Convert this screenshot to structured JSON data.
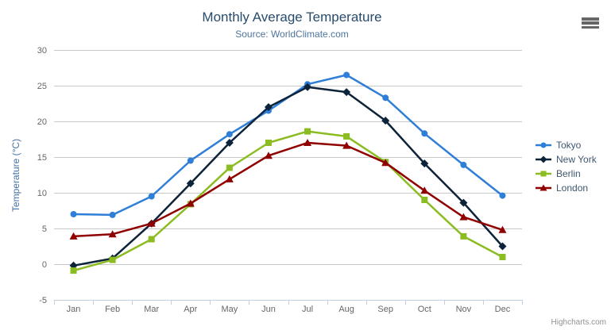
{
  "chart": {
    "title": "Monthly Average Temperature",
    "subtitle": "Source: WorldClimate.com",
    "credits": "Highcharts.com",
    "export_menu_icon": "hamburger-icon"
  },
  "chart_data": {
    "type": "line",
    "title": "Monthly Average Temperature",
    "subtitle": "Source: WorldClimate.com",
    "categories": [
      "Jan",
      "Feb",
      "Mar",
      "Apr",
      "May",
      "Jun",
      "Jul",
      "Aug",
      "Sep",
      "Oct",
      "Nov",
      "Dec"
    ],
    "xlabel": "",
    "ylabel": "Temperature (°C)",
    "ylim": [
      -5,
      30
    ],
    "ytick_interval": 5,
    "grid": true,
    "legend_position": "right",
    "series": [
      {
        "name": "Tokyo",
        "color": "#2f7ed8",
        "marker": "circle",
        "values": [
          7.0,
          6.9,
          9.5,
          14.5,
          18.2,
          21.5,
          25.2,
          26.5,
          23.3,
          18.3,
          13.9,
          9.6
        ]
      },
      {
        "name": "New York",
        "color": "#0d233a",
        "marker": "diamond",
        "values": [
          -0.2,
          0.8,
          5.7,
          11.3,
          17.0,
          22.0,
          24.8,
          24.1,
          20.1,
          14.1,
          8.6,
          2.5
        ]
      },
      {
        "name": "Berlin",
        "color": "#8bbc21",
        "marker": "square",
        "values": [
          -0.9,
          0.6,
          3.5,
          8.4,
          13.5,
          17.0,
          18.6,
          17.9,
          14.3,
          9.0,
          3.9,
          1.0
        ]
      },
      {
        "name": "London",
        "color": "#910000",
        "marker": "triangle",
        "values": [
          3.9,
          4.2,
          5.7,
          8.5,
          11.9,
          15.2,
          17.0,
          16.6,
          14.2,
          10.3,
          6.6,
          4.8
        ]
      }
    ]
  },
  "colors": {
    "grid_line": "#c8c8c8",
    "axis_line": "#c0d0e0",
    "tick_label": "#666666",
    "title_text": "#274b6d",
    "subtitle_text": "#4d759e",
    "yaxis_title_text": "#4572a7",
    "legend_text": "#3e576f",
    "credits_text": "#909090"
  }
}
